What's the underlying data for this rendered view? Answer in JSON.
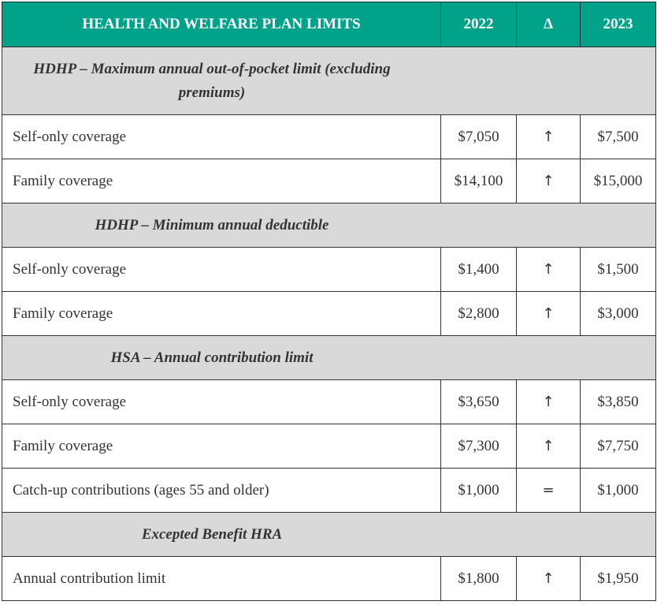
{
  "header": {
    "title": "HEALTH AND WELFARE PLAN LIMITS",
    "col_2022": "2022",
    "col_delta": "Δ",
    "col_2023": "2023"
  },
  "sections": [
    {
      "title": "HDHP – Maximum annual out-of-pocket limit (excluding premiums)",
      "rows": [
        {
          "label": "Self-only coverage",
          "v2022": "$7,050",
          "delta": "↑",
          "v2023": "$7,500"
        },
        {
          "label": "Family coverage",
          "v2022": "$14,100",
          "delta": "↑",
          "v2023": "$15,000"
        }
      ]
    },
    {
      "title": "HDHP – Minimum annual deductible",
      "rows": [
        {
          "label": "Self-only coverage",
          "v2022": "$1,400",
          "delta": "↑",
          "v2023": "$1,500"
        },
        {
          "label": "Family coverage",
          "v2022": "$2,800",
          "delta": "↑",
          "v2023": "$3,000"
        }
      ]
    },
    {
      "title": "HSA – Annual contribution limit",
      "rows": [
        {
          "label": "Self-only coverage",
          "v2022": "$3,650",
          "delta": "↑",
          "v2023": "$3,850"
        },
        {
          "label": "Family coverage",
          "v2022": "$7,300",
          "delta": "↑",
          "v2023": "$7,750"
        },
        {
          "label": "Catch-up contributions (ages 55 and older)",
          "v2022": "$1,000",
          "delta": "=",
          "v2023": "$1,000"
        }
      ]
    },
    {
      "title": "Excepted Benefit HRA",
      "rows": [
        {
          "label": "Annual contribution limit",
          "v2022": "$1,800",
          "delta": "↑",
          "v2023": "$1,950"
        }
      ]
    }
  ],
  "colors": {
    "header_bg": "#00a38a",
    "section_bg": "#d9d9d9"
  }
}
